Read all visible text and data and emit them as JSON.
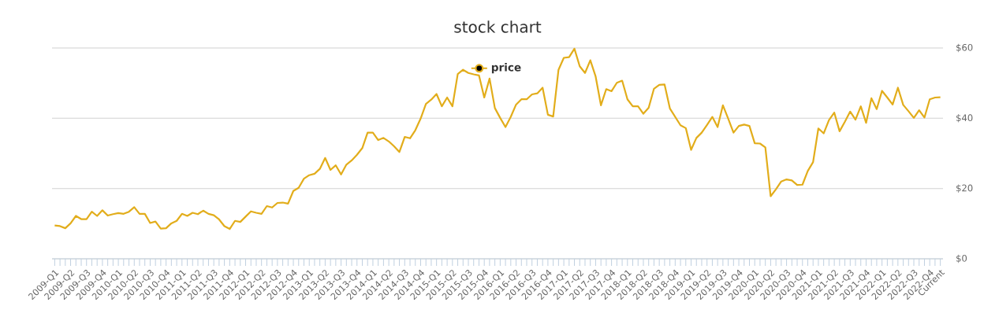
{
  "chart_data": {
    "type": "line",
    "title": "stock chart",
    "categories": [
      "2009-Q1",
      null,
      null,
      "2009-Q2",
      null,
      null,
      "2009-Q3",
      null,
      null,
      "2009-Q4",
      null,
      null,
      "2010-Q1",
      null,
      null,
      "2010-Q2",
      null,
      null,
      "2010-Q3",
      null,
      null,
      "2010-Q4",
      null,
      null,
      "2011-Q1",
      null,
      null,
      "2011-Q2",
      null,
      null,
      "2011-Q3",
      null,
      null,
      "2011-Q4",
      null,
      null,
      "2012-Q1",
      null,
      null,
      "2012-Q2",
      null,
      null,
      "2012-Q3",
      null,
      null,
      "2012-Q4",
      null,
      null,
      "2013-Q1",
      null,
      null,
      "2013-Q2",
      null,
      null,
      "2013-Q3",
      null,
      null,
      "2013-Q4",
      null,
      null,
      "2014-Q1",
      null,
      null,
      "2014-Q2",
      null,
      null,
      "2014-Q3",
      null,
      null,
      "2014-Q4",
      null,
      null,
      "2015-Q1",
      null,
      null,
      "2015-Q2",
      null,
      null,
      "2015-Q3",
      null,
      null,
      "2015-Q4",
      null,
      null,
      "2016-Q1",
      null,
      null,
      "2016-Q2",
      null,
      null,
      "2016-Q3",
      null,
      null,
      "2016-Q4",
      null,
      null,
      "2017-Q1",
      null,
      null,
      "2017-Q2",
      null,
      null,
      "2017-Q3",
      null,
      null,
      "2017-Q4",
      null,
      null,
      "2018-Q1",
      null,
      null,
      "2018-Q2",
      null,
      null,
      "2018-Q3",
      null,
      null,
      "2018-Q4",
      null,
      null,
      "2019-Q1",
      null,
      null,
      "2019-Q2",
      null,
      null,
      "2019-Q3",
      null,
      null,
      "2019-Q4",
      null,
      null,
      "2020-Q1",
      null,
      null,
      "2020-Q2",
      null,
      null,
      "2020-Q3",
      null,
      null,
      "2020-Q4",
      null,
      null,
      "2021-Q1",
      null,
      null,
      "2021-Q2",
      null,
      null,
      "2021-Q3",
      null,
      null,
      "2021-Q4",
      null,
      null,
      "2022-Q1",
      null,
      null,
      "2022-Q2",
      null,
      null,
      "2022-Q3",
      null,
      null,
      "2022-Q4",
      null,
      "Current"
    ],
    "series": [
      {
        "name": "price",
        "color": "#e2ad1b",
        "values": [
          9.5,
          9.3,
          8.7,
          10.1,
          12.2,
          11.3,
          11.3,
          13.4,
          12.2,
          13.8,
          12.3,
          12.7,
          13.0,
          12.8,
          13.4,
          14.7,
          12.8,
          12.8,
          10.2,
          10.6,
          8.6,
          8.7,
          10.1,
          10.8,
          12.8,
          12.2,
          13.1,
          12.7,
          13.7,
          12.8,
          12.4,
          11.2,
          9.3,
          8.5,
          10.8,
          10.5,
          12.0,
          13.5,
          13.1,
          12.8,
          15.0,
          14.6,
          15.9,
          16.0,
          15.7,
          19.3,
          20.2,
          22.8,
          23.8,
          24.2,
          25.6,
          28.7,
          25.3,
          26.6,
          24.0,
          26.8,
          28.0,
          29.6,
          31.5,
          35.9,
          35.9,
          33.8,
          34.4,
          33.4,
          32.0,
          30.4,
          34.7,
          34.3,
          36.6,
          39.9,
          44.1,
          45.3,
          46.9,
          43.4,
          45.9,
          43.4,
          52.6,
          53.8,
          52.9,
          52.5,
          52.2,
          45.9,
          51.3,
          42.9,
          40.1,
          37.5,
          40.4,
          43.9,
          45.4,
          45.4,
          46.8,
          47.1,
          48.7,
          41.0,
          40.5,
          53.8,
          57.2,
          57.4,
          59.8,
          54.8,
          52.9,
          56.5,
          51.9,
          43.7,
          48.3,
          47.7,
          50.1,
          50.7,
          45.4,
          43.4,
          43.4,
          41.3,
          43.0,
          48.4,
          49.5,
          49.6,
          42.8,
          40.4,
          38.0,
          37.2,
          31.0,
          34.4,
          35.9,
          38.1,
          40.4,
          37.5,
          43.7,
          39.9,
          35.9,
          37.8,
          38.2,
          37.8,
          32.9,
          32.8,
          31.7,
          17.8,
          19.8,
          22.0,
          22.6,
          22.3,
          21.0,
          21.1,
          25.0,
          27.5,
          37.1,
          35.7,
          39.5,
          41.6,
          36.3,
          39.0,
          41.9,
          39.6,
          43.4,
          38.7,
          45.7,
          42.6,
          47.8,
          45.9,
          43.9,
          48.7,
          43.8,
          42.0,
          40.1,
          42.3,
          40.2,
          45.4,
          45.9,
          46.0
        ]
      }
    ],
    "ylim": [
      0,
      60
    ],
    "yticks": [
      {
        "value": 0,
        "label": "$0"
      },
      {
        "value": 20,
        "label": "$20"
      },
      {
        "value": 40,
        "label": "$40"
      },
      {
        "value": 60,
        "label": "$60"
      }
    ],
    "grid": "y",
    "legend": "top"
  }
}
